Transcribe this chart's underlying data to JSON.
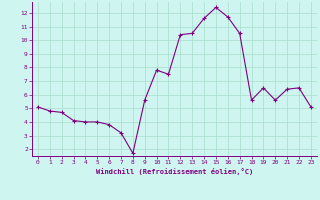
{
  "x": [
    0,
    1,
    2,
    3,
    4,
    5,
    6,
    7,
    8,
    9,
    10,
    11,
    12,
    13,
    14,
    15,
    16,
    17,
    18,
    19,
    20,
    21,
    22,
    23
  ],
  "y": [
    5.1,
    4.8,
    4.7,
    4.1,
    4.0,
    4.0,
    3.8,
    3.2,
    1.7,
    5.6,
    7.8,
    7.5,
    10.4,
    10.5,
    11.6,
    12.4,
    11.7,
    10.5,
    5.6,
    6.5,
    5.6,
    6.4,
    6.5,
    5.1
  ],
  "line_color": "#800080",
  "marker": "+",
  "marker_size": 3,
  "linewidth": 0.8,
  "background_color": "#cef5f0",
  "grid_color": "#aaddcc",
  "xlabel": "Windchill (Refroidissement éolien,°C)",
  "xlabel_color": "#800080",
  "tick_color": "#800080",
  "ylim": [
    1.5,
    12.8
  ],
  "xlim": [
    -0.5,
    23.5
  ],
  "yticks": [
    2,
    3,
    4,
    5,
    6,
    7,
    8,
    9,
    10,
    11,
    12
  ],
  "xticks": [
    0,
    1,
    2,
    3,
    4,
    5,
    6,
    7,
    8,
    9,
    10,
    11,
    12,
    13,
    14,
    15,
    16,
    17,
    18,
    19,
    20,
    21,
    22,
    23
  ]
}
